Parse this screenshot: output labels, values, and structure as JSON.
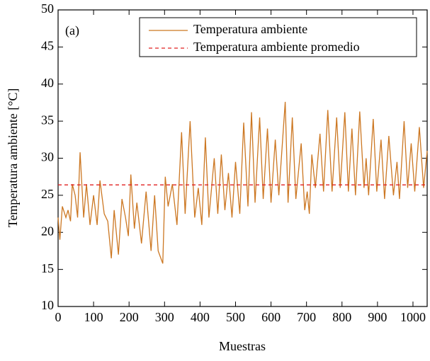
{
  "chart_data": {
    "type": "line",
    "annotation": "(a)",
    "xlabel": "Muestras",
    "ylabel": "Temperatura ambiente [°C]",
    "xlim": [
      0,
      1040
    ],
    "xticks": [
      0,
      100,
      200,
      300,
      400,
      500,
      600,
      700,
      800,
      900,
      1000
    ],
    "ylim": [
      10,
      50
    ],
    "yticks": [
      10,
      15,
      20,
      25,
      30,
      35,
      40,
      45,
      50
    ],
    "legend": "upper right",
    "series": [
      {
        "name": "Temperatura ambiente",
        "color": "#cc7722",
        "x": [
          0,
          5,
          12,
          22,
          28,
          35,
          40,
          48,
          55,
          62,
          72,
          80,
          90,
          100,
          110,
          118,
          130,
          140,
          150,
          158,
          170,
          180,
          190,
          198,
          205,
          215,
          222,
          235,
          248,
          262,
          272,
          282,
          295,
          302,
          310,
          322,
          335,
          348,
          358,
          372,
          385,
          395,
          405,
          415,
          425,
          440,
          450,
          460,
          470,
          480,
          490,
          500,
          512,
          523,
          535,
          545,
          555,
          568,
          578,
          590,
          600,
          612,
          622,
          640,
          648,
          660,
          670,
          685,
          695,
          702,
          708,
          715,
          725,
          738,
          748,
          760,
          772,
          785,
          795,
          808,
          818,
          828,
          838,
          850,
          862,
          868,
          875,
          888,
          898,
          910,
          920,
          932,
          945,
          955,
          962,
          975,
          985,
          995,
          1005,
          1018,
          1030,
          1040
        ],
        "values": [
          22,
          19,
          23.5,
          22,
          23,
          21.5,
          26.5,
          25,
          22,
          30.8,
          22,
          26.5,
          21,
          25,
          21,
          27,
          22.5,
          21.5,
          16.5,
          23,
          17,
          24.5,
          22,
          19.5,
          27.8,
          20.5,
          24,
          18.5,
          25.5,
          17.5,
          25,
          17.5,
          15.8,
          27.5,
          23.5,
          26.5,
          21,
          33.5,
          22.5,
          35,
          22,
          26,
          21,
          32.8,
          22,
          30,
          22.5,
          30.5,
          23,
          28,
          22,
          29.5,
          22.5,
          34.8,
          23.5,
          36.2,
          24,
          35.5,
          24.5,
          34,
          24,
          32.5,
          25,
          37.6,
          24,
          35.5,
          24.5,
          32,
          23,
          25.5,
          22.5,
          30.5,
          26,
          33.3,
          25.5,
          36.5,
          25.5,
          35.5,
          26,
          36.2,
          25.5,
          34,
          25,
          36.3,
          26,
          30,
          25,
          35.3,
          25.5,
          32.5,
          24.5,
          33,
          25,
          29.5,
          24.5,
          35,
          26,
          32,
          25.5,
          34.2,
          26,
          31
        ]
      },
      {
        "name": "Temperatura ambiente promedio",
        "color": "#e02020",
        "value": 26.4
      }
    ]
  }
}
